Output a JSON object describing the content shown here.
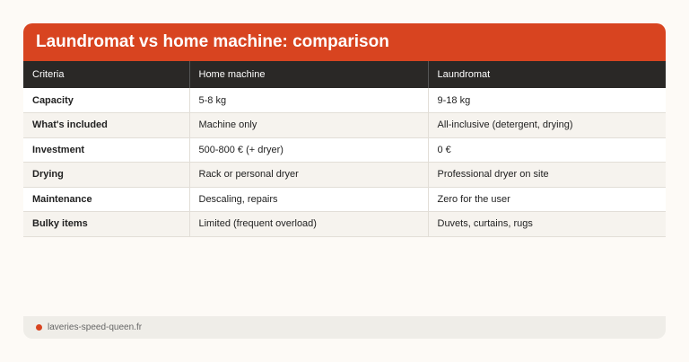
{
  "title": "Laundromat vs home machine: comparison",
  "columns": [
    "Criteria",
    "Home machine",
    "Laundromat"
  ],
  "rows": [
    [
      "Capacity",
      "5-8 kg",
      "9-18 kg"
    ],
    [
      "What's included",
      "Machine only",
      "All-inclusive (detergent, drying)"
    ],
    [
      "Investment",
      "500-800 € (+ dryer)",
      "0 €"
    ],
    [
      "Drying",
      "Rack or personal dryer",
      "Professional dryer on site"
    ],
    [
      "Maintenance",
      "Descaling, repairs",
      "Zero for the user"
    ],
    [
      "Bulky items",
      "Limited (frequent overload)",
      "Duvets, curtains, rugs"
    ]
  ],
  "footer": {
    "source": "laveries-speed-queen.fr",
    "dot_color": "#d84420"
  },
  "colors": {
    "accent": "#d84420",
    "header_bg": "#2a2826"
  }
}
